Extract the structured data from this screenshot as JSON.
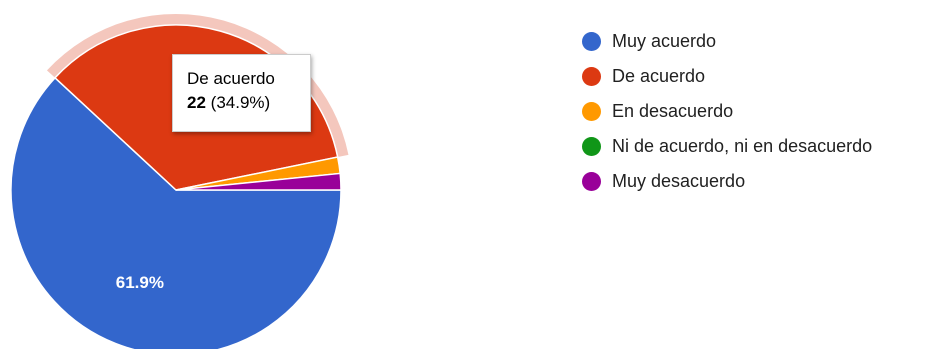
{
  "chart_data": {
    "type": "pie",
    "title": "",
    "slices": [
      {
        "label": "Muy acuerdo",
        "percent": 61.9,
        "color": "#3366cc"
      },
      {
        "label": "De acuerdo",
        "count": 22,
        "percent": 34.9,
        "color": "#dc3912"
      },
      {
        "label": "En desacuerdo",
        "percent": 1.6,
        "color": "#ff9900"
      },
      {
        "label": "Ni de acuerdo, ni en desacuerdo",
        "percent": 0,
        "color": "#109618"
      },
      {
        "label": "Muy desacuerdo",
        "percent": 1.6,
        "color": "#990099"
      }
    ],
    "data_labels": [
      {
        "slice": "Muy acuerdo",
        "text": "61.9%"
      }
    ],
    "highlighted": "De acuerdo",
    "legend_position": "right",
    "tooltip": {
      "title": "De acuerdo",
      "value": "22",
      "percent": "(34.9%)"
    }
  }
}
